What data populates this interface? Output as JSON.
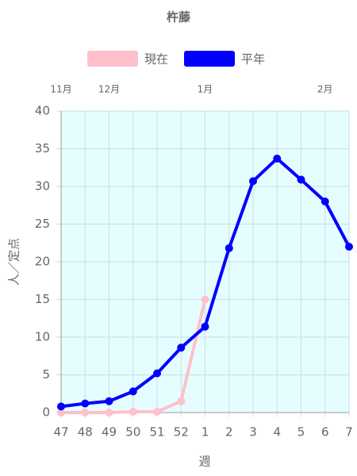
{
  "chart_data": {
    "type": "line",
    "title": "杵藤",
    "categories": [
      "47",
      "48",
      "49",
      "50",
      "51",
      "52",
      "1",
      "2",
      "3",
      "4",
      "5",
      "6",
      "7"
    ],
    "month_labels": [
      "11月",
      null,
      "12月",
      null,
      null,
      null,
      "1月",
      null,
      null,
      null,
      null,
      "2月",
      null
    ],
    "series": [
      {
        "name": "現在",
        "color": "#ffc0cb",
        "values": [
          0,
          0,
          0,
          0.1,
          0.1,
          1.5,
          15,
          null,
          null,
          null,
          null,
          null,
          null
        ]
      },
      {
        "name": "平年",
        "color": "#0000ff",
        "values": [
          0.8,
          1.2,
          1.5,
          2.8,
          5.2,
          8.6,
          11.4,
          21.8,
          30.7,
          33.7,
          30.9,
          28.0,
          22.0
        ]
      }
    ],
    "xlabel": "週",
    "ylabel": "人／定点",
    "ylim": [
      0,
      40
    ],
    "yticks": [
      0,
      5,
      10,
      15,
      20,
      25,
      30,
      35,
      40
    ],
    "grid": true
  }
}
